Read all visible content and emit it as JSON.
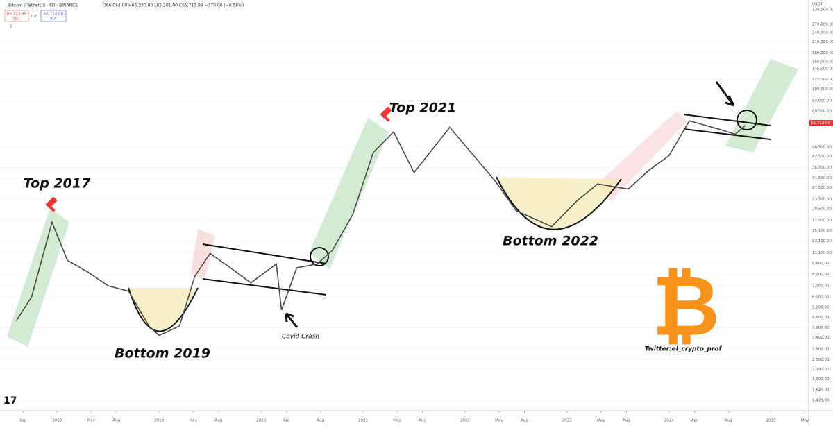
{
  "header": {
    "symbol": "Bitcoin / TetherUS · 6D · BINANCE",
    "ohlc": "O66,084.00 H66,330.00 L65,201.00 C65,713.99 −370.00 (−0.56%)",
    "sell_price": "65,713.99",
    "sell": "SELL",
    "spread": "0.01",
    "buy_price": "65,714.00",
    "buy": "BUY",
    "indicators": "2",
    "currency": "USDT",
    "last_price": "65,713.99"
  },
  "chart_data": {
    "type": "line",
    "color": "#4a4a4a",
    "log_scale": true,
    "annotations": [
      "Top 2017",
      "Bottom 2019",
      "Covid Crash",
      "Top 2021",
      "Bottom 2022",
      "Twitter:el_crypto_prof"
    ],
    "x": [
      2017.6,
      2017.75,
      2017.95,
      2018.1,
      2018.3,
      2018.5,
      2018.7,
      2018.9,
      2019.0,
      2019.2,
      2019.35,
      2019.5,
      2019.7,
      2019.9,
      2020.15,
      2020.2,
      2020.35,
      2020.55,
      2020.7,
      2020.9,
      2021.1,
      2021.3,
      2021.5,
      2021.85,
      2022.1,
      2022.3,
      2022.5,
      2022.85,
      2023.1,
      2023.3,
      2023.6,
      2023.8,
      2024.0,
      2024.2,
      2024.5,
      2024.65,
      2024.75
    ],
    "values": [
      4300,
      6000,
      17000,
      10000,
      8500,
      7000,
      6500,
      4000,
      3500,
      4000,
      8000,
      11000,
      9000,
      7300,
      9500,
      5000,
      9000,
      9500,
      11500,
      19000,
      45000,
      60000,
      34000,
      64000,
      42000,
      30000,
      20000,
      16000,
      23000,
      29000,
      27000,
      35000,
      43000,
      70000,
      62000,
      58000,
      65714
    ],
    "xlim": [
      2017.44,
      2025.37
    ],
    "xticks": [
      {
        "value": 2017.667,
        "label": "Sep"
      },
      {
        "value": 2018,
        "label": "2018"
      },
      {
        "value": 2018.333,
        "label": "May"
      },
      {
        "value": 2018.583,
        "label": "Aug"
      },
      {
        "value": 2019,
        "label": "2019"
      },
      {
        "value": 2019.333,
        "label": "May"
      },
      {
        "value": 2019.583,
        "label": "Aug"
      },
      {
        "value": 2020,
        "label": "2020"
      },
      {
        "value": 2020.25,
        "label": "Apr"
      },
      {
        "value": 2020.583,
        "label": "Aug"
      },
      {
        "value": 2021,
        "label": "2021"
      },
      {
        "value": 2021.333,
        "label": "May"
      },
      {
        "value": 2021.583,
        "label": "Aug"
      },
      {
        "value": 2022,
        "label": "2022"
      },
      {
        "value": 2022.333,
        "label": "May"
      },
      {
        "value": 2022.583,
        "label": "Aug"
      },
      {
        "value": 2023,
        "label": "2023"
      },
      {
        "value": 2023.333,
        "label": "May"
      },
      {
        "value": 2023.583,
        "label": "Aug"
      },
      {
        "value": 2024,
        "label": "2024"
      },
      {
        "value": 2024.25,
        "label": "Apr"
      },
      {
        "value": 2024.583,
        "label": "Aug"
      },
      {
        "value": 2025,
        "label": "2025"
      },
      {
        "value": 2025.333,
        "label": "May"
      }
    ],
    "ylim": [
      1250,
      378000
    ],
    "yticks": [
      {
        "value": 330000,
        "label": "330,000.00"
      },
      {
        "value": 270000,
        "label": "270,000.00"
      },
      {
        "value": 240000,
        "label": "240,000.00"
      },
      {
        "value": 210000,
        "label": "210,000.00"
      },
      {
        "value": 180000,
        "label": "180,000.00"
      },
      {
        "value": 160000,
        "label": "160,000.00"
      },
      {
        "value": 145000,
        "label": "145,000.00"
      },
      {
        "value": 125000,
        "label": "125,000.00"
      },
      {
        "value": 109000,
        "label": "109,000.00"
      },
      {
        "value": 93000,
        "label": "93,000.00"
      },
      {
        "value": 80500,
        "label": "80,500.00"
      },
      {
        "value": 48500,
        "label": "48,500.00"
      },
      {
        "value": 42500,
        "label": "42,500.00"
      },
      {
        "value": 36500,
        "label": "36,500.00"
      },
      {
        "value": 31500,
        "label": "31,500.00"
      },
      {
        "value": 27500,
        "label": "27,500.00"
      },
      {
        "value": 23500,
        "label": "23,500.00"
      },
      {
        "value": 20500,
        "label": "20,500.00"
      },
      {
        "value": 17500,
        "label": "17,500.00"
      },
      {
        "value": 15100,
        "label": "15,100.00"
      },
      {
        "value": 13100,
        "label": "13,100.00"
      },
      {
        "value": 11100,
        "label": "11,100.00"
      },
      {
        "value": 9600,
        "label": "9,600.00"
      },
      {
        "value": 8200,
        "label": "8,200.00"
      },
      {
        "value": 7000,
        "label": "7,000.00"
      },
      {
        "value": 6000,
        "label": "6,000.00"
      },
      {
        "value": 5200,
        "label": "5,200.00"
      },
      {
        "value": 4500,
        "label": "4,500.00"
      },
      {
        "value": 3900,
        "label": "3,900.00"
      },
      {
        "value": 3400,
        "label": "3,400.00"
      },
      {
        "value": 2900,
        "label": "2,900.00"
      },
      {
        "value": 2500,
        "label": "2,500.00"
      },
      {
        "value": 2180,
        "label": "2,180.00"
      },
      {
        "value": 1900,
        "label": "1,900.00"
      },
      {
        "value": 1640,
        "label": "1,640.00"
      },
      {
        "value": 1420,
        "label": "1,420.00"
      }
    ]
  }
}
